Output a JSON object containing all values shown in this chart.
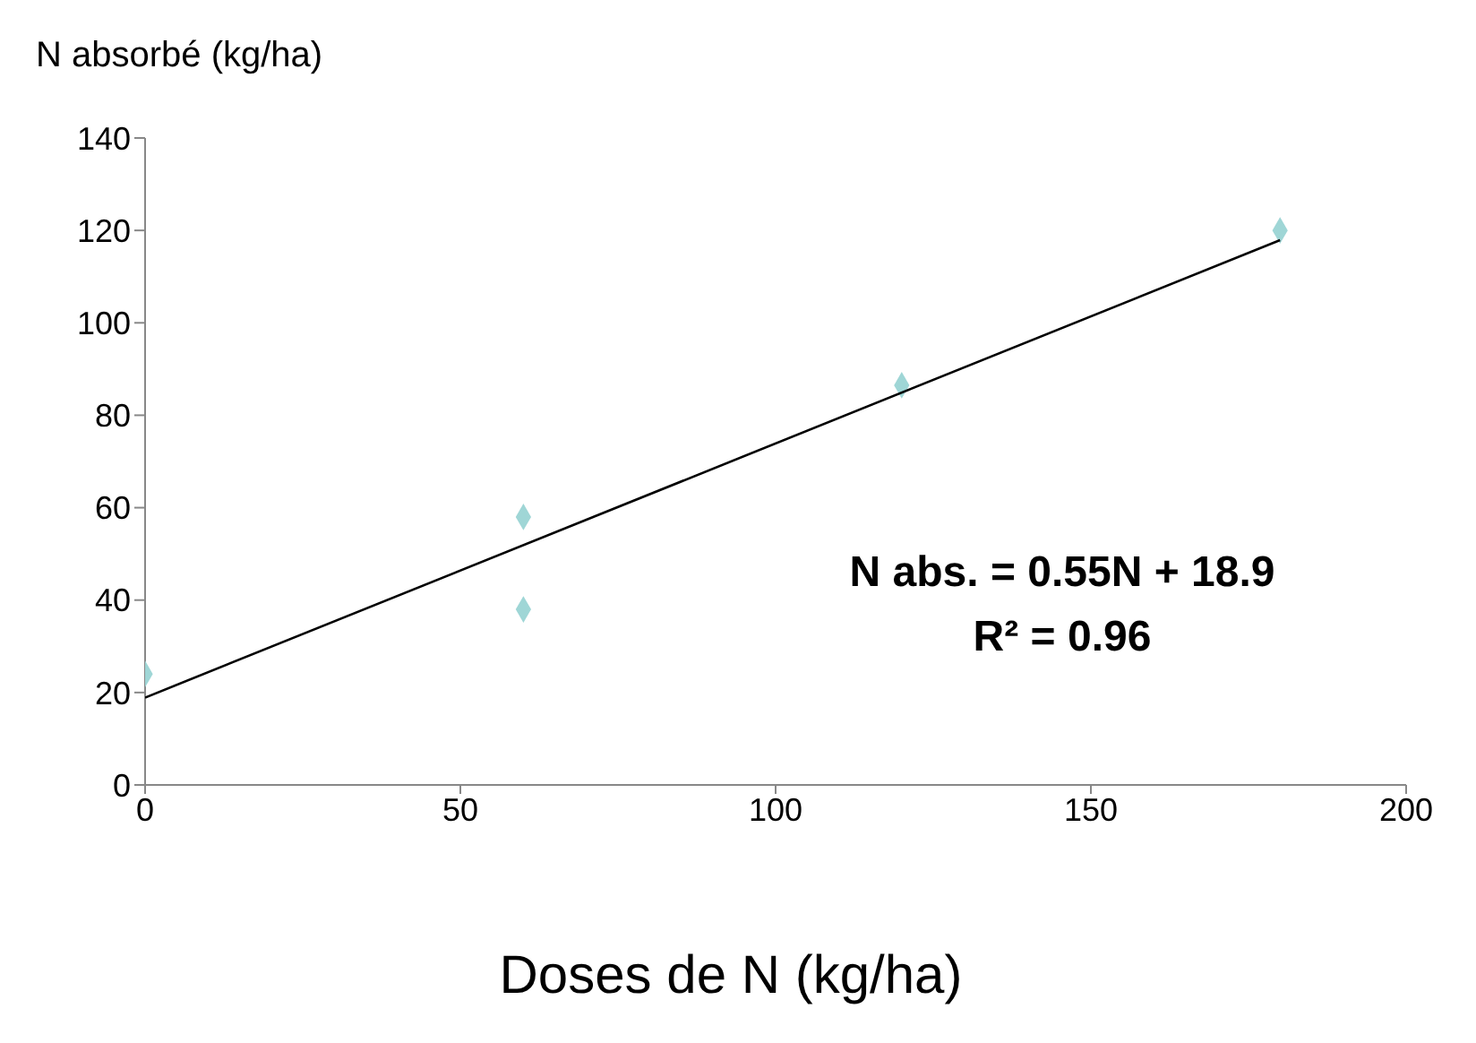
{
  "chart_data": {
    "type": "scatter",
    "xlabel": "Doses de N (kg/ha)",
    "ylabel": "N absorbé (kg/ha)",
    "annotations": [
      "N abs. = 0.55N + 18.9",
      "R² = 0.96"
    ],
    "xlim": [
      0,
      200
    ],
    "xticks": [
      0,
      50,
      100,
      150,
      200
    ],
    "ylim": [
      0,
      140
    ],
    "yticks": [
      0,
      20,
      40,
      60,
      80,
      100,
      120,
      140
    ],
    "marker": "diamond",
    "series": [
      {
        "color": "#9fd6d6",
        "x": [
          0,
          60,
          60,
          120,
          180
        ],
        "values": [
          24,
          58,
          38,
          86.5,
          120
        ]
      },
      {
        "type": "line",
        "marker": "none",
        "color": "#000000",
        "x": [
          0,
          180
        ],
        "values": [
          18.9,
          117.9
        ],
        "line_style": "solid"
      }
    ]
  }
}
